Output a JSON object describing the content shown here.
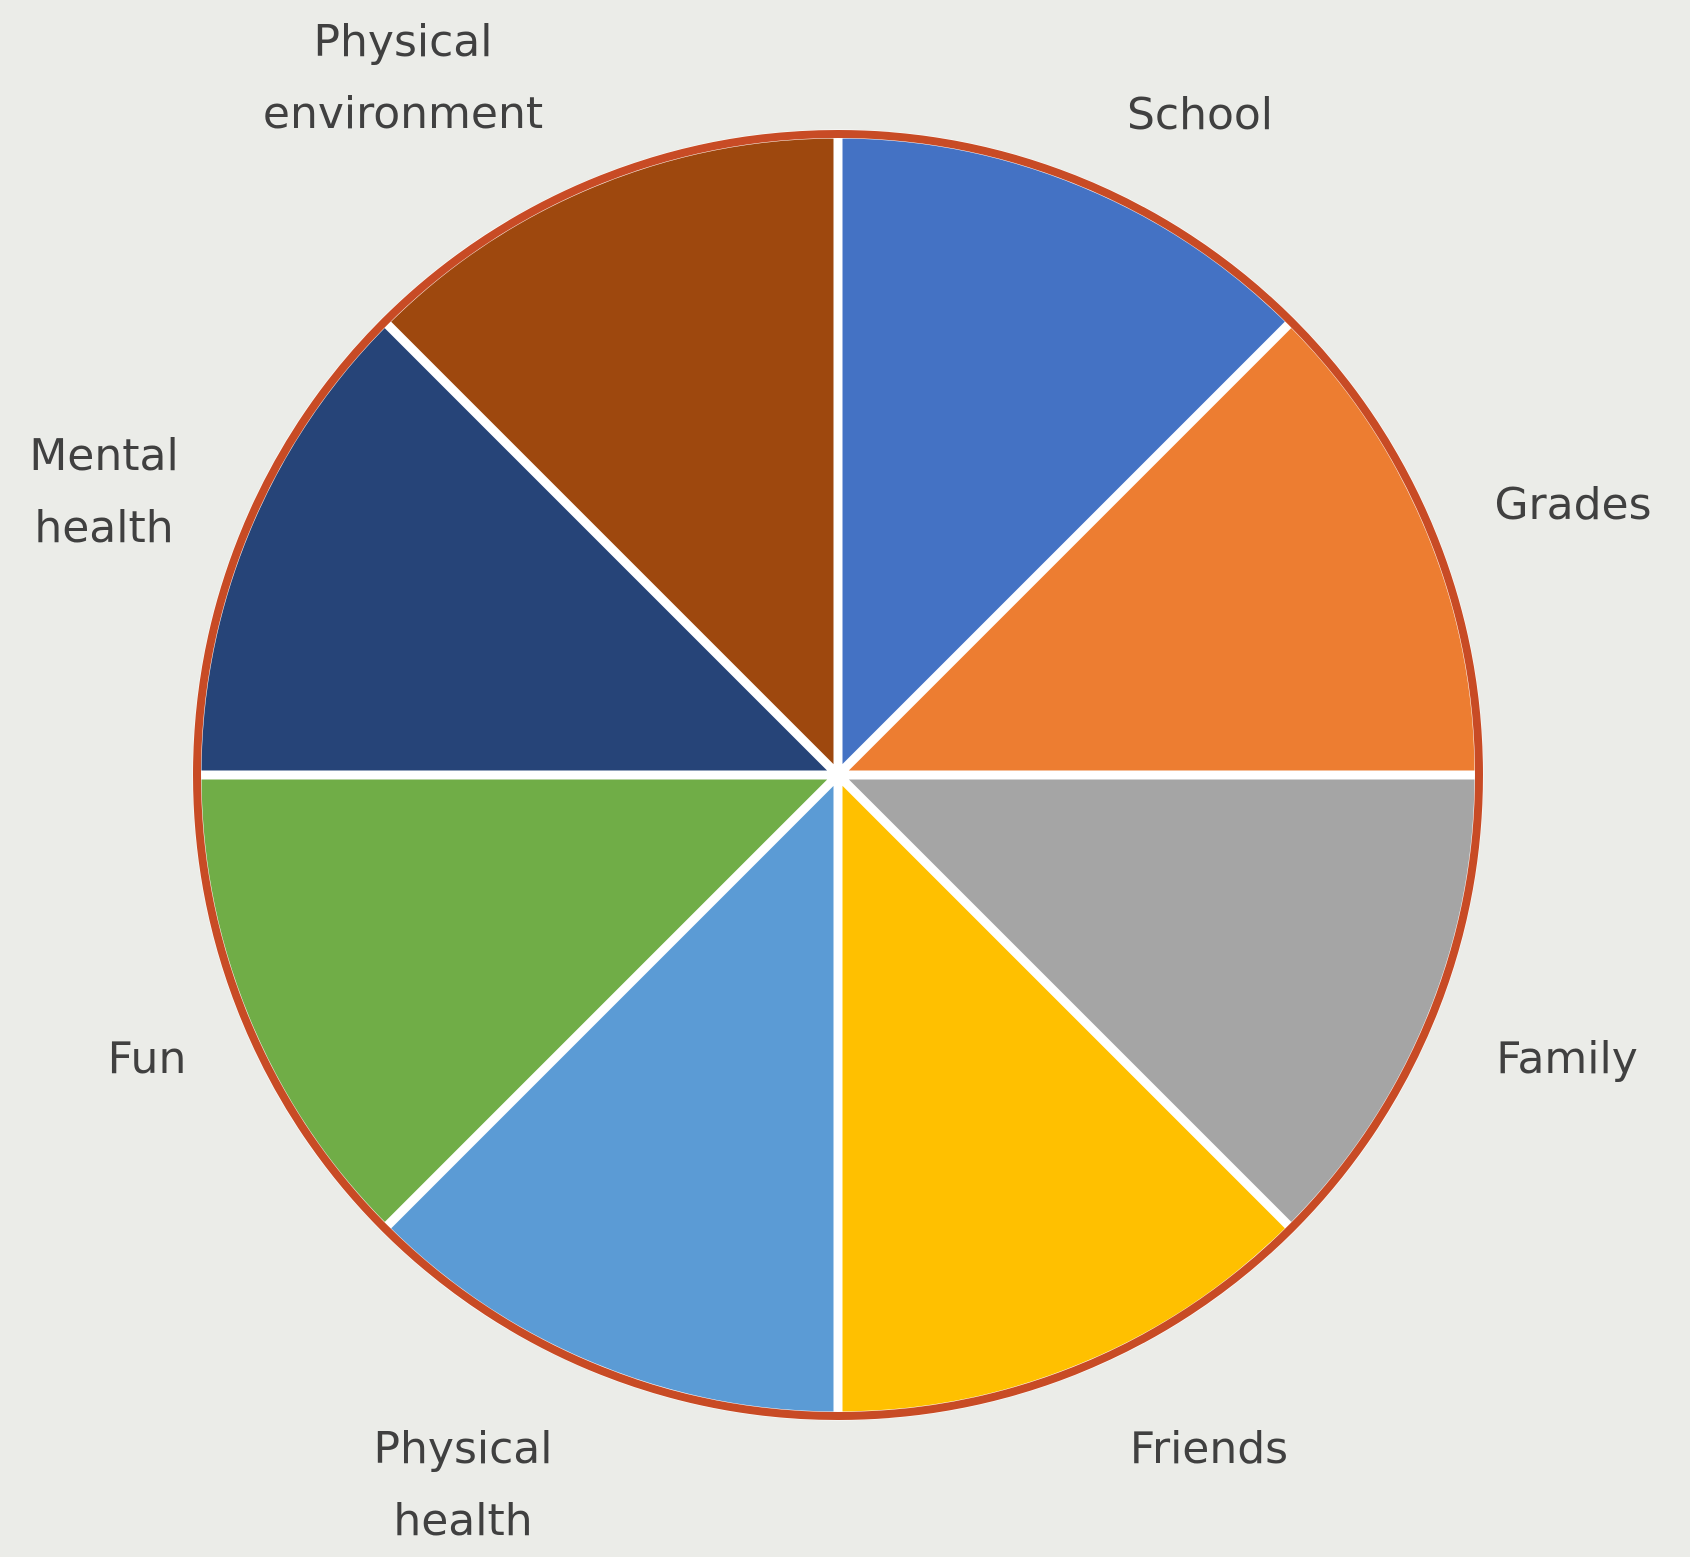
{
  "chart_data": {
    "type": "pie",
    "title": "",
    "start_angle_deg": 0,
    "direction": "clockwise",
    "slice_border_color": "#ffffff",
    "outline_color": "#c84b25",
    "background": "#ebece8",
    "slices": [
      {
        "label": [
          "School"
        ],
        "value": 1,
        "color": "#4472c4"
      },
      {
        "label": [
          "Grades"
        ],
        "value": 1,
        "color": "#ed7d31"
      },
      {
        "label": [
          "Family"
        ],
        "value": 1,
        "color": "#a5a5a5"
      },
      {
        "label": [
          "Friends"
        ],
        "value": 1,
        "color": "#ffc000"
      },
      {
        "label": [
          "Physical",
          "health"
        ],
        "value": 1,
        "color": "#5b9bd5"
      },
      {
        "label": [
          "Fun"
        ],
        "value": 1,
        "color": "#70ad47"
      },
      {
        "label": [
          "Mental",
          "health"
        ],
        "value": 1,
        "color": "#264478"
      },
      {
        "label": [
          "Physical",
          "environment"
        ],
        "value": 1,
        "color": "#9e480e"
      }
    ]
  }
}
